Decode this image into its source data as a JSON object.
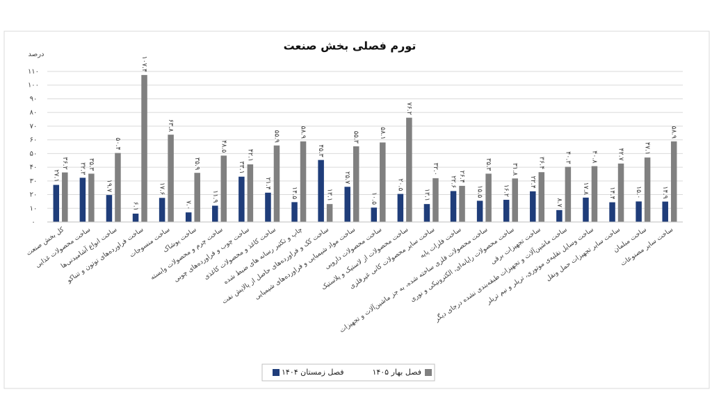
{
  "chart_data": {
    "type": "bar",
    "title": "تورم فصلی بخش صنعت",
    "y_label": "درصد",
    "categories": [
      "کل بخش صنعت",
      "ساخت محصولات غذایی",
      "ساخت انواع آشامیدنی‌ها",
      "ساخت فراورده‌های توتون و تنباکو",
      "ساخت منسوجات",
      "ساخت پوشاک",
      "ساخت چرم و محصولات وابسته",
      "ساخت چوب و فراورده‌های چوبی",
      "ساخت کاغذ و محصولات کاغذی",
      "چاپ و تکثیر رسانه های ضبط شده",
      "ساخت کک و فراورده‌های حاصل از پالایش نفت",
      "ساخت مواد شیمیایی و فراورده‌های شیمیایی",
      "ساخت محصولات دارویی",
      "ساخت محصولات از لاستیک و پلاستیک",
      "ساخت سایر محصولات کانی غیرفلزی",
      "ساخت فلزات پایه",
      "ساخت محصولات فلزی ساخته شده، به جز ماشین‌آلات و تجهیزات",
      "ساخت محصولات رایانه‌ای، الکترونیکی و نوری",
      "ساخت تجهیزات برقی",
      "ساخت ماشین‌آلات و تجهیزات طبقه‌بندی نشده درجای دیگر",
      "ساخت وسایل نقلیه‌ی موتوری، تریلر و نیم تریلر",
      "ساخت سایر تجهیزات حمل ونقل",
      "ساخت مبلمان",
      "ساخت سایر مصنوعات"
    ],
    "series": [
      {
        "name": "فصل زمستان ۱۴۰۴",
        "color": "#1f3d7a",
        "values": [
          27.1,
          32.3,
          19.7,
          6.1,
          17.6,
          7.0,
          11.9,
          33.1,
          21.4,
          14.5,
          45.3,
          25.7,
          10.5,
          20.5,
          13.1,
          22.6,
          15.5,
          16.2,
          22.4,
          8.7,
          17.8,
          14.4,
          15.0,
          14.9
        ],
        "value_labels": [
          "۲۷.۱",
          "۳۲.۳",
          "۱۹.۷",
          "۶.۱",
          "۱۷.۶",
          "۷.۰",
          "۱۱.۹",
          "۳۳.۱",
          "۲۱.۴",
          "۱۴.۵",
          "۴۵.۳",
          "۲۵.۷",
          "۱۰.۵",
          "۲۰.۵",
          "۱۳.۱",
          "۲۲.۶",
          "۱۵.۵",
          "۱۶.۲",
          "۲۲.۴",
          "۸.۷",
          "۱۷.۸",
          "۱۴.۴",
          "۱۵.۰",
          "۱۴.۹"
        ]
      },
      {
        "name": "فصل بهار ۱۴۰۵",
        "color": "#808080",
        "values": [
          36.2,
          35.3,
          50.4,
          107.4,
          63.8,
          35.9,
          48.5,
          42.1,
          55.9,
          58.9,
          13.1,
          55.3,
          58.1,
          76.2,
          32.0,
          26.4,
          35.3,
          31.8,
          36.4,
          40.3,
          40.8,
          42.7,
          47.1,
          58.9
        ],
        "value_labels": [
          "۳۶.۲",
          "۳۵.۳",
          "۵۰.۴",
          "۱۰۷.۴",
          "۶۳.۸",
          "۳۵.۹",
          "۴۸.۵",
          "۴۲.۱",
          "۵۵.۹",
          "۵۸.۹",
          "۱۳.۱",
          "۵۵.۳",
          "۵۸.۱",
          "۷۶.۲",
          "۳۲.۰",
          "۲۶.۴",
          "۳۵.۳",
          "۳۱.۸",
          "۳۶.۴",
          "۴۰.۳",
          "۴۰.۸",
          "۴۲.۷",
          "۴۷.۱",
          "۵۸.۹"
        ]
      }
    ],
    "ylim": [
      0,
      110
    ],
    "yticks": [
      {
        "value": 0,
        "label": "۰"
      },
      {
        "value": 10,
        "label": "۱۰"
      },
      {
        "value": 20,
        "label": "۲۰"
      },
      {
        "value": 30,
        "label": "۳۰"
      },
      {
        "value": 40,
        "label": "۴۰"
      },
      {
        "value": 50,
        "label": "۵۰"
      },
      {
        "value": 60,
        "label": "۶۰"
      },
      {
        "value": 70,
        "label": "۷۰"
      },
      {
        "value": 80,
        "label": "۸۰"
      },
      {
        "value": 90,
        "label": "۹۰"
      },
      {
        "value": 100,
        "label": "۱۰۰"
      },
      {
        "value": 110,
        "label": "۱۱۰"
      }
    ],
    "grid": true
  }
}
